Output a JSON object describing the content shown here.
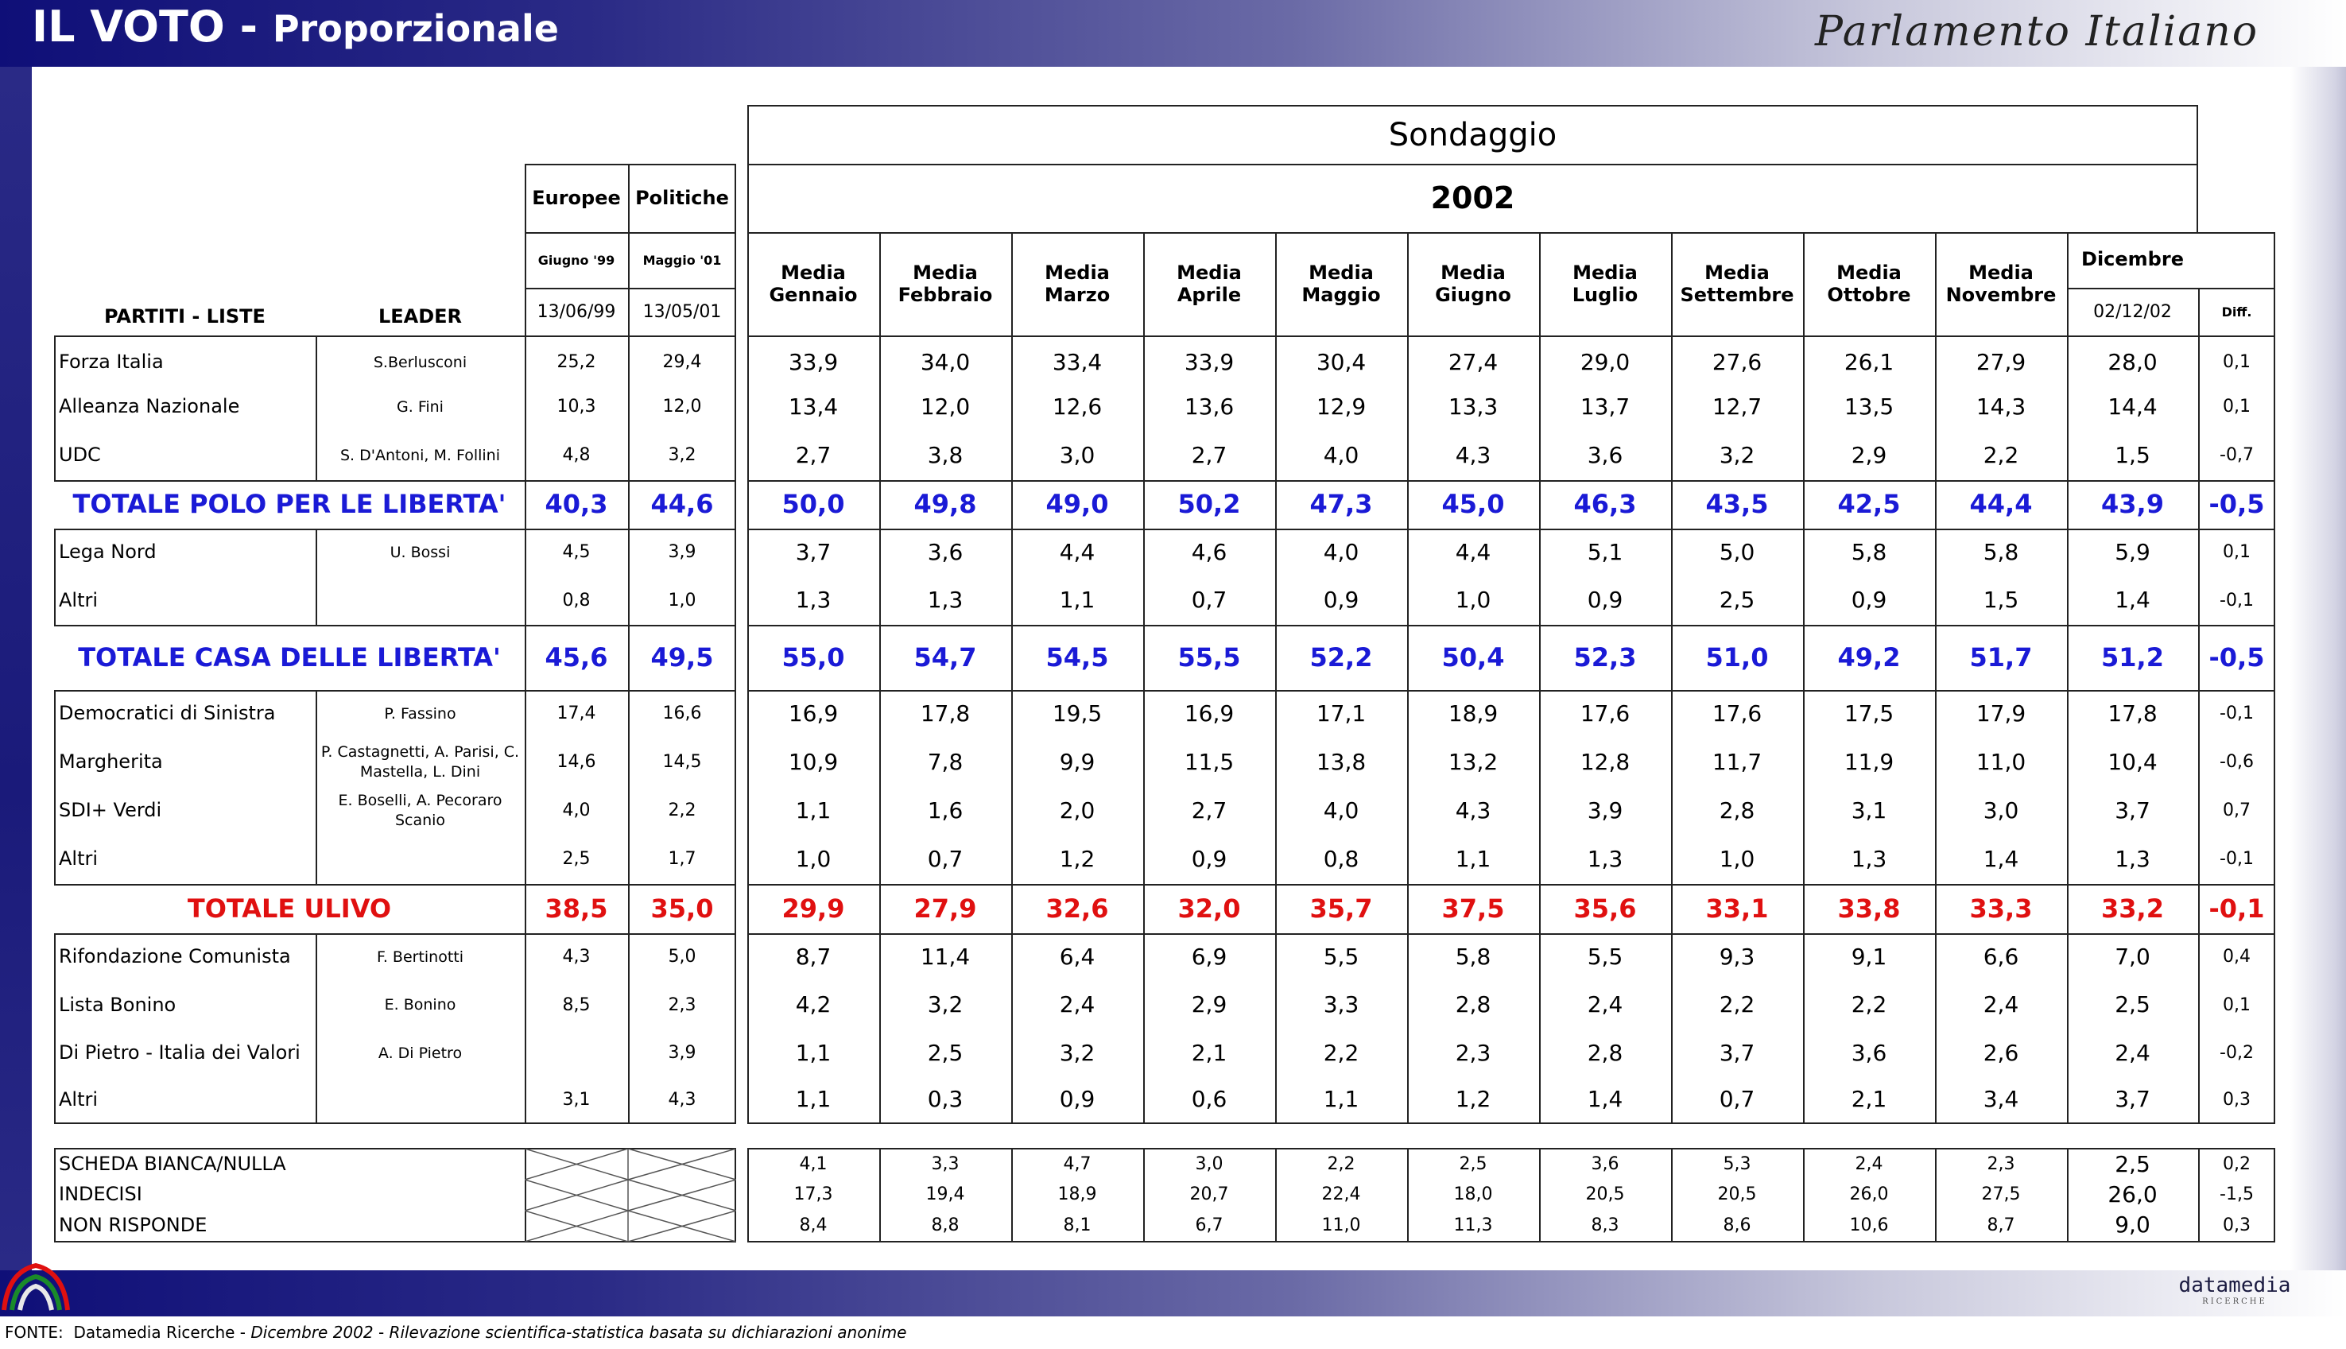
{
  "header": {
    "title": "IL VOTO - ",
    "subtitle": "Proporzionale",
    "brand": "Parlamento Italiano"
  },
  "table": {
    "col_partiti": "PARTITI - LISTE",
    "col_leader": "LEADER",
    "europee": {
      "label": "Europee",
      "period": "Giugno '99",
      "date": "13/06/99"
    },
    "politiche": {
      "label": "Politiche",
      "period": "Maggio '01",
      "date": "13/05/01"
    },
    "sondaggio": "Sondaggio",
    "year": "2002",
    "months": [
      [
        "Media",
        "Gennaio"
      ],
      [
        "Media",
        "Febbraio"
      ],
      [
        "Media",
        "Marzo"
      ],
      [
        "Media",
        "Aprile"
      ],
      [
        "Media",
        "Maggio"
      ],
      [
        "Media",
        "Giugno"
      ],
      [
        "Media",
        "Luglio"
      ],
      [
        "Media",
        "Settembre"
      ],
      [
        "Media",
        "Ottobre"
      ],
      [
        "Media",
        "Novembre"
      ]
    ],
    "dicembre": "Dicembre",
    "dicembre_date": "02/12/02",
    "diff": "Diff.",
    "rows": [
      {
        "party": "Forza Italia",
        "leader": "S.Berlusconi",
        "eur": "25,2",
        "pol": "29,4",
        "vals": [
          "33,9",
          "34,0",
          "33,4",
          "33,9",
          "30,4",
          "27,4",
          "29,0",
          "27,6",
          "26,1",
          "27,9",
          "28,0"
        ],
        "diff": "0,1"
      },
      {
        "party": "Alleanza Nazionale",
        "leader": "G. Fini",
        "eur": "10,3",
        "pol": "12,0",
        "vals": [
          "13,4",
          "12,0",
          "12,6",
          "13,6",
          "12,9",
          "13,3",
          "13,7",
          "12,7",
          "13,5",
          "14,3",
          "14,4"
        ],
        "diff": "0,1"
      },
      {
        "party": "UDC",
        "leader": "S. D'Antoni, M. Follini",
        "eur": "4,8",
        "pol": "3,2",
        "vals": [
          "2,7",
          "3,8",
          "3,0",
          "2,7",
          "4,0",
          "4,3",
          "3,6",
          "3,2",
          "2,9",
          "2,2",
          "1,5"
        ],
        "diff": "-0,7"
      },
      {
        "total": "TOTALE POLO PER LE LIBERTA'",
        "eur": "40,3",
        "pol": "44,6",
        "vals": [
          "50,0",
          "49,8",
          "49,0",
          "50,2",
          "47,3",
          "45,0",
          "46,3",
          "43,5",
          "42,5",
          "44,4",
          "43,9"
        ],
        "diff": "-0,5"
      },
      {
        "party": "Lega Nord",
        "leader": "U. Bossi",
        "eur": "4,5",
        "pol": "3,9",
        "vals": [
          "3,7",
          "3,6",
          "4,4",
          "4,6",
          "4,0",
          "4,4",
          "5,1",
          "5,0",
          "5,8",
          "5,8",
          "5,9"
        ],
        "diff": "0,1"
      },
      {
        "party": "Altri",
        "leader": "",
        "eur": "0,8",
        "pol": "1,0",
        "vals": [
          "1,3",
          "1,3",
          "1,1",
          "0,7",
          "0,9",
          "1,0",
          "0,9",
          "2,5",
          "0,9",
          "1,5",
          "1,4"
        ],
        "diff": "-0,1"
      },
      {
        "total": "TOTALE CASA DELLE LIBERTA'",
        "eur": "45,6",
        "pol": "49,5",
        "vals": [
          "55,0",
          "54,7",
          "54,5",
          "55,5",
          "52,2",
          "50,4",
          "52,3",
          "51,0",
          "49,2",
          "51,7",
          "51,2"
        ],
        "diff": "-0,5"
      },
      {
        "party": "Democratici di Sinistra",
        "leader": "P. Fassino",
        "eur": "17,4",
        "pol": "16,6",
        "vals": [
          "16,9",
          "17,8",
          "19,5",
          "16,9",
          "17,1",
          "18,9",
          "17,6",
          "17,6",
          "17,5",
          "17,9",
          "17,8"
        ],
        "diff": "-0,1"
      },
      {
        "party": "Margherita",
        "leader": "P. Castagnetti, A. Parisi, C. Mastella, L. Dini",
        "eur": "14,6",
        "pol": "14,5",
        "vals": [
          "10,9",
          "7,8",
          "9,9",
          "11,5",
          "13,8",
          "13,2",
          "12,8",
          "11,7",
          "11,9",
          "11,0",
          "10,4"
        ],
        "diff": "-0,6"
      },
      {
        "party": "SDI+ Verdi",
        "leader": "E. Boselli, A. Pecoraro Scanio",
        "eur": "4,0",
        "pol": "2,2",
        "vals": [
          "1,1",
          "1,6",
          "2,0",
          "2,7",
          "4,0",
          "4,3",
          "3,9",
          "2,8",
          "3,1",
          "3,0",
          "3,7"
        ],
        "diff": "0,7"
      },
      {
        "party": "Altri",
        "leader": "",
        "eur": "2,5",
        "pol": "1,7",
        "vals": [
          "1,0",
          "0,7",
          "1,2",
          "0,9",
          "0,8",
          "1,1",
          "1,3",
          "1,0",
          "1,3",
          "1,4",
          "1,3"
        ],
        "diff": "-0,1"
      },
      {
        "total": "TOTALE ULIVO",
        "eur": "38,5",
        "pol": "35,0",
        "vals": [
          "29,9",
          "27,9",
          "32,6",
          "32,0",
          "35,7",
          "37,5",
          "35,6",
          "33,1",
          "33,8",
          "33,3",
          "33,2"
        ],
        "diff": "-0,1"
      },
      {
        "party": "Rifondazione Comunista",
        "leader": "F. Bertinotti",
        "eur": "4,3",
        "pol": "5,0",
        "vals": [
          "8,7",
          "11,4",
          "6,4",
          "6,9",
          "5,5",
          "5,8",
          "5,5",
          "9,3",
          "9,1",
          "6,6",
          "7,0"
        ],
        "diff": "0,4"
      },
      {
        "party": "Lista Bonino",
        "leader": "E. Bonino",
        "eur": "8,5",
        "pol": "2,3",
        "vals": [
          "4,2",
          "3,2",
          "2,4",
          "2,9",
          "3,3",
          "2,8",
          "2,4",
          "2,2",
          "2,2",
          "2,4",
          "2,5"
        ],
        "diff": "0,1"
      },
      {
        "party": "Di Pietro - Italia dei Valori",
        "leader": "A. Di Pietro",
        "eur": "",
        "pol": "3,9",
        "vals": [
          "1,1",
          "2,5",
          "3,2",
          "2,1",
          "2,2",
          "2,3",
          "2,8",
          "3,7",
          "3,6",
          "2,6",
          "2,4"
        ],
        "diff": "-0,2"
      },
      {
        "party": "Altri",
        "leader": "",
        "eur": "3,1",
        "pol": "4,3",
        "vals": [
          "1,1",
          "0,3",
          "0,9",
          "0,6",
          "1,1",
          "1,2",
          "1,4",
          "0,7",
          "2,1",
          "3,4",
          "3,7"
        ],
        "diff": "0,3"
      }
    ],
    "extra": [
      {
        "label": "SCHEDA BIANCA/NULLA",
        "vals": [
          "4,1",
          "3,3",
          "4,7",
          "3,0",
          "2,2",
          "2,5",
          "3,6",
          "5,3",
          "2,4",
          "2,3",
          "2,5"
        ],
        "diff": "0,2"
      },
      {
        "label": "INDECISI",
        "vals": [
          "17,3",
          "19,4",
          "18,9",
          "20,7",
          "22,4",
          "18,0",
          "20,5",
          "20,5",
          "26,0",
          "27,5",
          "26,0"
        ],
        "diff": "-1,5"
      },
      {
        "label": "NON RISPONDE",
        "vals": [
          "8,4",
          "8,8",
          "8,1",
          "6,7",
          "11,0",
          "11,3",
          "8,3",
          "8,6",
          "10,6",
          "8,7",
          "9,0"
        ],
        "diff": "0,3"
      }
    ]
  },
  "footer": {
    "fonte": "FONTE:",
    "source": "Datamedia Ricerche",
    "date": "Dicembre 2002",
    "desc": "Rilevazione scientifica-statistica basata su dichiarazioni anonime",
    "sep": " - "
  },
  "datamedia": {
    "name": "datamedia",
    "tag": "RICERCHE"
  },
  "colors": {
    "blue_total": "#1a1ad6",
    "red_total": "#e01010",
    "bar_dark": "#0f0f78"
  }
}
